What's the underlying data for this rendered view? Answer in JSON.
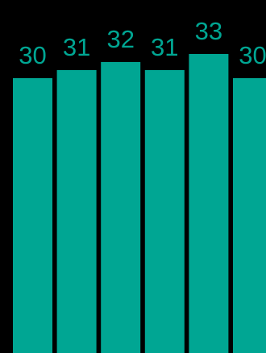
{
  "colors": {
    "background": "#000000",
    "bar": "#00a693",
    "label": "#00a693"
  },
  "chart_data": {
    "type": "bar",
    "categories": [
      "",
      "",
      "",
      "",
      "",
      ""
    ],
    "values": [
      30,
      31,
      32,
      31,
      33,
      30
    ],
    "labels": [
      "30",
      "31",
      "32",
      "31",
      "33",
      "30"
    ],
    "title": "",
    "xlabel": "",
    "ylabel": "",
    "grid": false,
    "legend": "none"
  }
}
